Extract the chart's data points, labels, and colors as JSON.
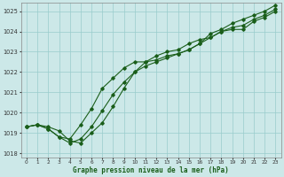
{
  "title": "Graphe pression niveau de la mer (hPa)",
  "bg_color": "#cce8e8",
  "grid_color": "#99cccc",
  "line_color": "#1a5e1a",
  "xlim": [
    -0.5,
    23.5
  ],
  "ylim": [
    1017.8,
    1025.4
  ],
  "yticks": [
    1018,
    1019,
    1020,
    1021,
    1022,
    1023,
    1024,
    1025
  ],
  "xticks": [
    0,
    1,
    2,
    3,
    4,
    5,
    6,
    7,
    8,
    9,
    10,
    11,
    12,
    13,
    14,
    15,
    16,
    17,
    18,
    19,
    20,
    21,
    22,
    23
  ],
  "series": [
    [
      1019.3,
      1019.4,
      1019.3,
      1019.1,
      1018.6,
      1018.5,
      1019.0,
      1019.5,
      1020.3,
      1021.2,
      1022.0,
      1022.5,
      1022.8,
      1023.0,
      1023.1,
      1023.4,
      1023.6,
      1023.7,
      1024.0,
      1024.1,
      1024.1,
      1024.5,
      1024.7,
      1025.0
    ],
    [
      1019.3,
      1019.4,
      1019.2,
      1018.8,
      1018.5,
      1018.7,
      1019.3,
      1020.1,
      1020.9,
      1021.5,
      1022.0,
      1022.3,
      1022.5,
      1022.7,
      1022.9,
      1023.1,
      1023.4,
      1023.7,
      1024.0,
      1024.2,
      1024.3,
      1024.6,
      1024.8,
      1025.1
    ],
    [
      1019.3,
      1019.4,
      1019.2,
      1018.8,
      1018.7,
      1019.4,
      1020.2,
      1021.2,
      1021.7,
      1022.2,
      1022.5,
      1022.5,
      1022.6,
      1022.8,
      1022.9,
      1023.1,
      1023.4,
      1023.9,
      1024.1,
      1024.4,
      1024.6,
      1024.8,
      1025.0,
      1025.3
    ]
  ]
}
